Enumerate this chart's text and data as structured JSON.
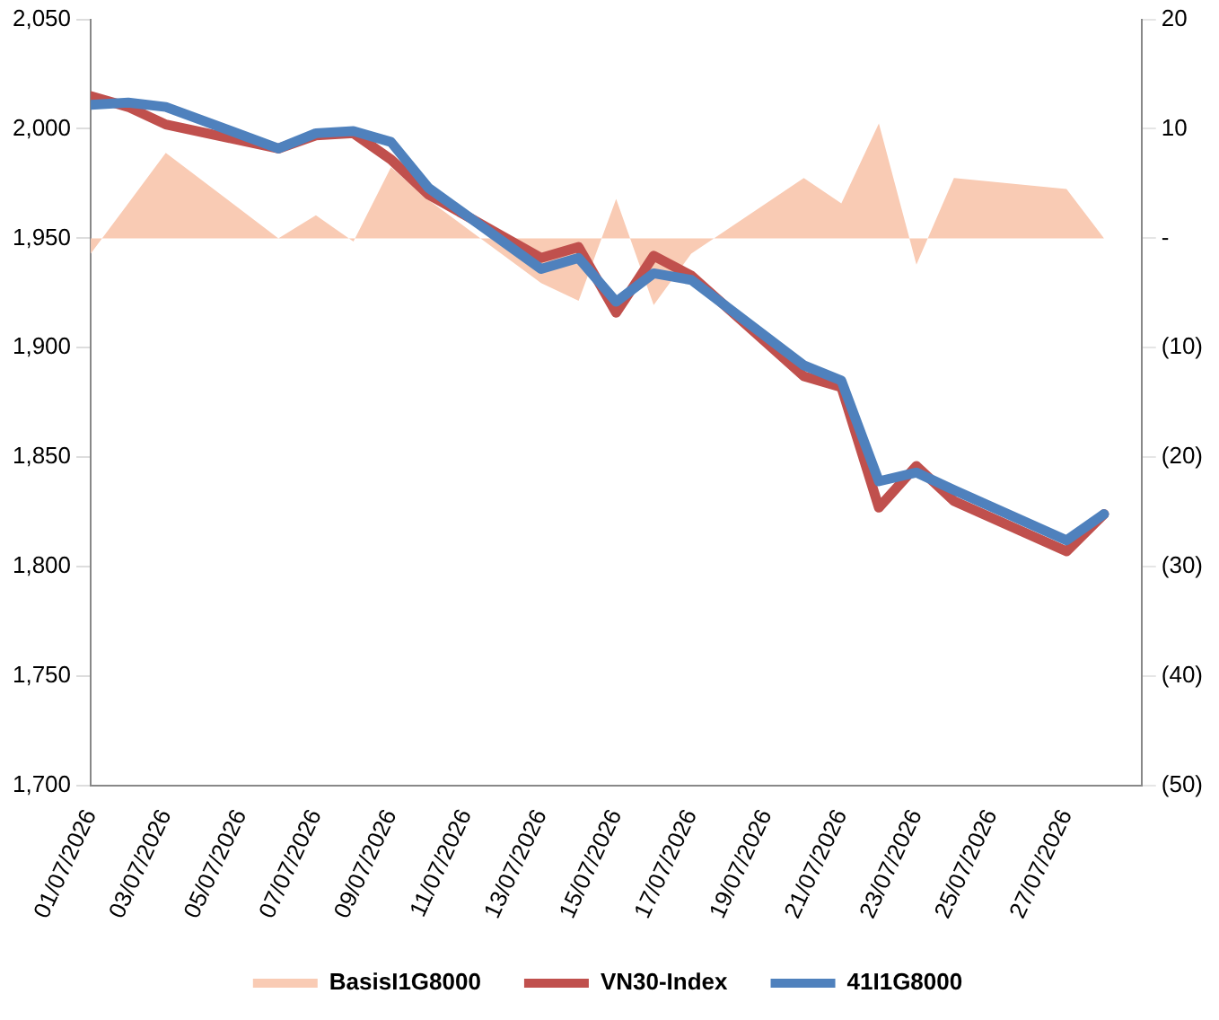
{
  "chart_data": {
    "type": "line",
    "x": [
      "2026-07-01",
      "2026-07-02",
      "2026-07-03",
      "2026-07-06",
      "2026-07-07",
      "2026-07-08",
      "2026-07-09",
      "2026-07-10",
      "2026-07-13",
      "2026-07-14",
      "2026-07-15",
      "2026-07-16",
      "2026-07-17",
      "2026-07-20",
      "2026-07-21",
      "2026-07-22",
      "2026-07-23",
      "2026-07-24",
      "2026-07-27",
      "2026-07-28"
    ],
    "series": [
      {
        "name": "BasisI1G8000",
        "type": "area",
        "axis": "y2",
        "color": "#f9cbb4",
        "values": [
          -1.4,
          3.2,
          7.8,
          0,
          2.1,
          -0.3,
          6.5,
          3.5,
          -4.1,
          -5.7,
          3.6,
          -6.1,
          -1.4,
          5.5,
          3.2,
          10.5,
          -2.4,
          5.5,
          4.5,
          0
        ]
      },
      {
        "name": "VN30-Index",
        "color": "#c0504d",
        "values": [
          2015,
          2010,
          2002,
          1991,
          1997,
          1998,
          1986,
          1970,
          1941,
          1946,
          1916,
          1942,
          1933,
          1887,
          1882,
          1827,
          1846,
          1830,
          1807,
          1824
        ]
      },
      {
        "name": "41I1G8000",
        "color": "#4f81bd",
        "values": [
          2011,
          2012,
          2010,
          1991,
          1998,
          1999,
          1994,
          1973,
          1936,
          1941,
          1921,
          1934,
          1931,
          1892,
          1885,
          1839,
          1843,
          1835,
          1812,
          1824
        ]
      }
    ],
    "xlim": [
      "2026-07-01",
      "2026-07-29"
    ],
    "xticks": [
      {
        "value": "2026-07-01",
        "label": "01/07/2026"
      },
      {
        "value": "2026-07-03",
        "label": "03/07/2026"
      },
      {
        "value": "2026-07-05",
        "label": "05/07/2026"
      },
      {
        "value": "2026-07-07",
        "label": "07/07/2026"
      },
      {
        "value": "2026-07-09",
        "label": "09/07/2026"
      },
      {
        "value": "2026-07-11",
        "label": "11/07/2026"
      },
      {
        "value": "2026-07-13",
        "label": "13/07/2026"
      },
      {
        "value": "2026-07-15",
        "label": "15/07/2026"
      },
      {
        "value": "2026-07-17",
        "label": "17/07/2026"
      },
      {
        "value": "2026-07-19",
        "label": "19/07/2026"
      },
      {
        "value": "2026-07-21",
        "label": "21/07/2026"
      },
      {
        "value": "2026-07-23",
        "label": "23/07/2026"
      },
      {
        "value": "2026-07-25",
        "label": "25/07/2026"
      },
      {
        "value": "2026-07-27",
        "label": "27/07/2026"
      }
    ],
    "ylim": [
      1700,
      2050
    ],
    "yticks": [
      {
        "value": 1700,
        "label": "1,700"
      },
      {
        "value": 1750,
        "label": "1,750"
      },
      {
        "value": 1800,
        "label": "1,800"
      },
      {
        "value": 1850,
        "label": "1,850"
      },
      {
        "value": 1900,
        "label": "1,900"
      },
      {
        "value": 1950,
        "label": "1,950"
      },
      {
        "value": 2000,
        "label": "2,000"
      },
      {
        "value": 2050,
        "label": "2,050"
      }
    ],
    "y2lim": [
      -50,
      20
    ],
    "y2ticks": [
      {
        "value": -50,
        "label": "(50)"
      },
      {
        "value": -40,
        "label": "(40)"
      },
      {
        "value": -30,
        "label": "(30)"
      },
      {
        "value": -20,
        "label": "(20)"
      },
      {
        "value": -10,
        "label": "(10)"
      },
      {
        "value": 0,
        "label": "-"
      },
      {
        "value": 10,
        "label": "10"
      },
      {
        "value": 20,
        "label": "20"
      }
    ],
    "grid": false,
    "legend": "bottom",
    "marker": "none"
  }
}
